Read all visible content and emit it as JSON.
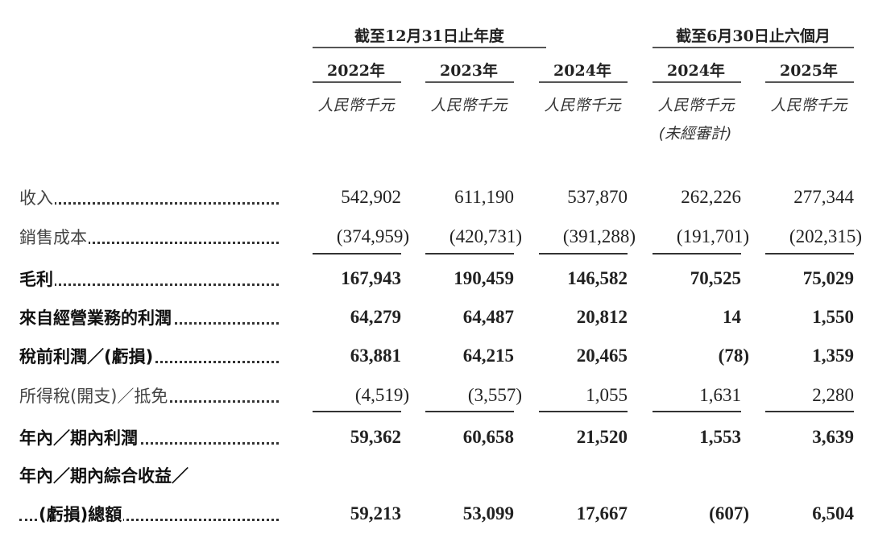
{
  "header": {
    "groups": [
      "截至12月31日止年度",
      "截至6月30日止六個月"
    ],
    "columns": [
      {
        "year": "2022年",
        "unit": "人民幣千元"
      },
      {
        "year": "2023年",
        "unit": "人民幣千元"
      },
      {
        "year": "2024年",
        "unit": "人民幣千元"
      },
      {
        "year": "2024年",
        "unit": "人民幣千元",
        "note": "(未經審計)"
      },
      {
        "year": "2025年",
        "unit": "人民幣千元"
      }
    ]
  },
  "rows": [
    {
      "label": "收入",
      "bold": false,
      "values": [
        "542,902",
        "611,190",
        "537,870",
        "262,226",
        "277,344"
      ]
    },
    {
      "label": "銷售成本",
      "bold": false,
      "values": [
        "(374,959)",
        "(420,731)",
        "(391,288)",
        "(191,701)",
        "(202,315)"
      ]
    },
    {
      "label": "毛利",
      "bold": true,
      "values": [
        "167,943",
        "190,459",
        "146,582",
        "70,525",
        "75,029"
      ]
    },
    {
      "label": "來自經營業務的利潤",
      "bold": true,
      "values": [
        "64,279",
        "64,487",
        "20,812",
        "14",
        "1,550"
      ]
    },
    {
      "label": "稅前利潤／(虧損)",
      "bold": true,
      "values": [
        "63,881",
        "64,215",
        "20,465",
        "(78)",
        "1,359"
      ]
    },
    {
      "label": "所得稅(開支)／抵免",
      "bold": false,
      "values": [
        "(4,519)",
        "(3,557)",
        "1,055",
        "1,631",
        "2,280"
      ]
    },
    {
      "label": "年內／期內利潤",
      "bold": true,
      "values": [
        "59,362",
        "60,658",
        "21,520",
        "1,553",
        "3,639"
      ]
    },
    {
      "label": "年內／期內綜合收益／",
      "bold": true,
      "values": [
        "",
        "",
        "",
        "",
        ""
      ]
    },
    {
      "label": "(虧損)總額",
      "bold": true,
      "indent": true,
      "values": [
        "59,213",
        "53,099",
        "17,667",
        "(607)",
        "6,504"
      ]
    }
  ]
}
